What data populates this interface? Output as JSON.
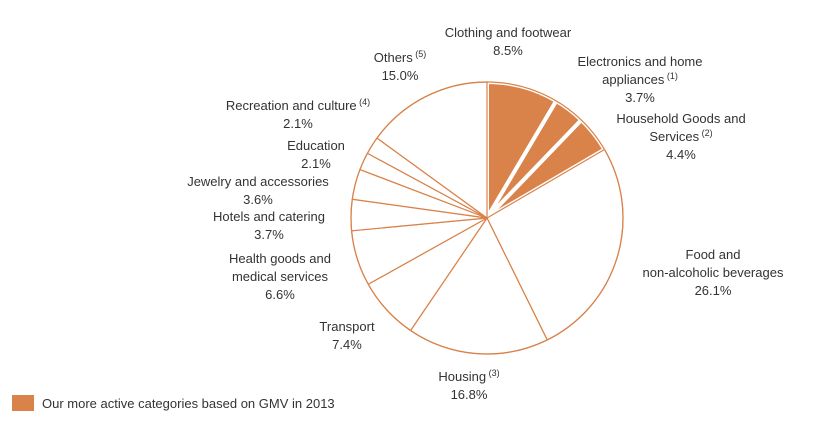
{
  "chart_data": {
    "type": "pie",
    "start_angle_deg": 0,
    "direction": "clockwise",
    "colors": {
      "highlight": "#d9824a",
      "outline": "#d9824a",
      "background": "#ffffff"
    },
    "slices": [
      {
        "name": "Clothing and footwear",
        "note": "",
        "value": 8.5,
        "label": "8.5%",
        "highlight": true
      },
      {
        "name": "Electronics and home appliances",
        "note": "(1)",
        "value": 3.7,
        "label": "3.7%",
        "highlight": true
      },
      {
        "name": "Household Goods and Services",
        "note": "(2)",
        "value": 4.4,
        "label": "4.4%",
        "highlight": true
      },
      {
        "name": "Food and non-alcoholic beverages",
        "note": "",
        "value": 26.1,
        "label": "26.1%",
        "highlight": false
      },
      {
        "name": "Housing",
        "note": "(3)",
        "value": 16.8,
        "label": "16.8%",
        "highlight": false
      },
      {
        "name": "Transport",
        "note": "",
        "value": 7.4,
        "label": "7.4%",
        "highlight": false
      },
      {
        "name": "Health goods and medical services",
        "note": "",
        "value": 6.6,
        "label": "6.6%",
        "highlight": false
      },
      {
        "name": "Hotels and catering",
        "note": "",
        "value": 3.7,
        "label": "3.7%",
        "highlight": false
      },
      {
        "name": "Jewelry and accessories",
        "note": "",
        "value": 3.6,
        "label": "3.6%",
        "highlight": false
      },
      {
        "name": "Education",
        "note": "",
        "value": 2.1,
        "label": "2.1%",
        "highlight": false
      },
      {
        "name": "Recreation and culture",
        "note": "(4)",
        "value": 2.1,
        "label": "2.1%",
        "highlight": false
      },
      {
        "name": "Others",
        "note": "(5)",
        "value": 15.0,
        "label": "15.0%",
        "highlight": false
      }
    ],
    "legend": {
      "placement": "bottom-left",
      "text": "Our more active categories based on GMV in 2013"
    }
  }
}
